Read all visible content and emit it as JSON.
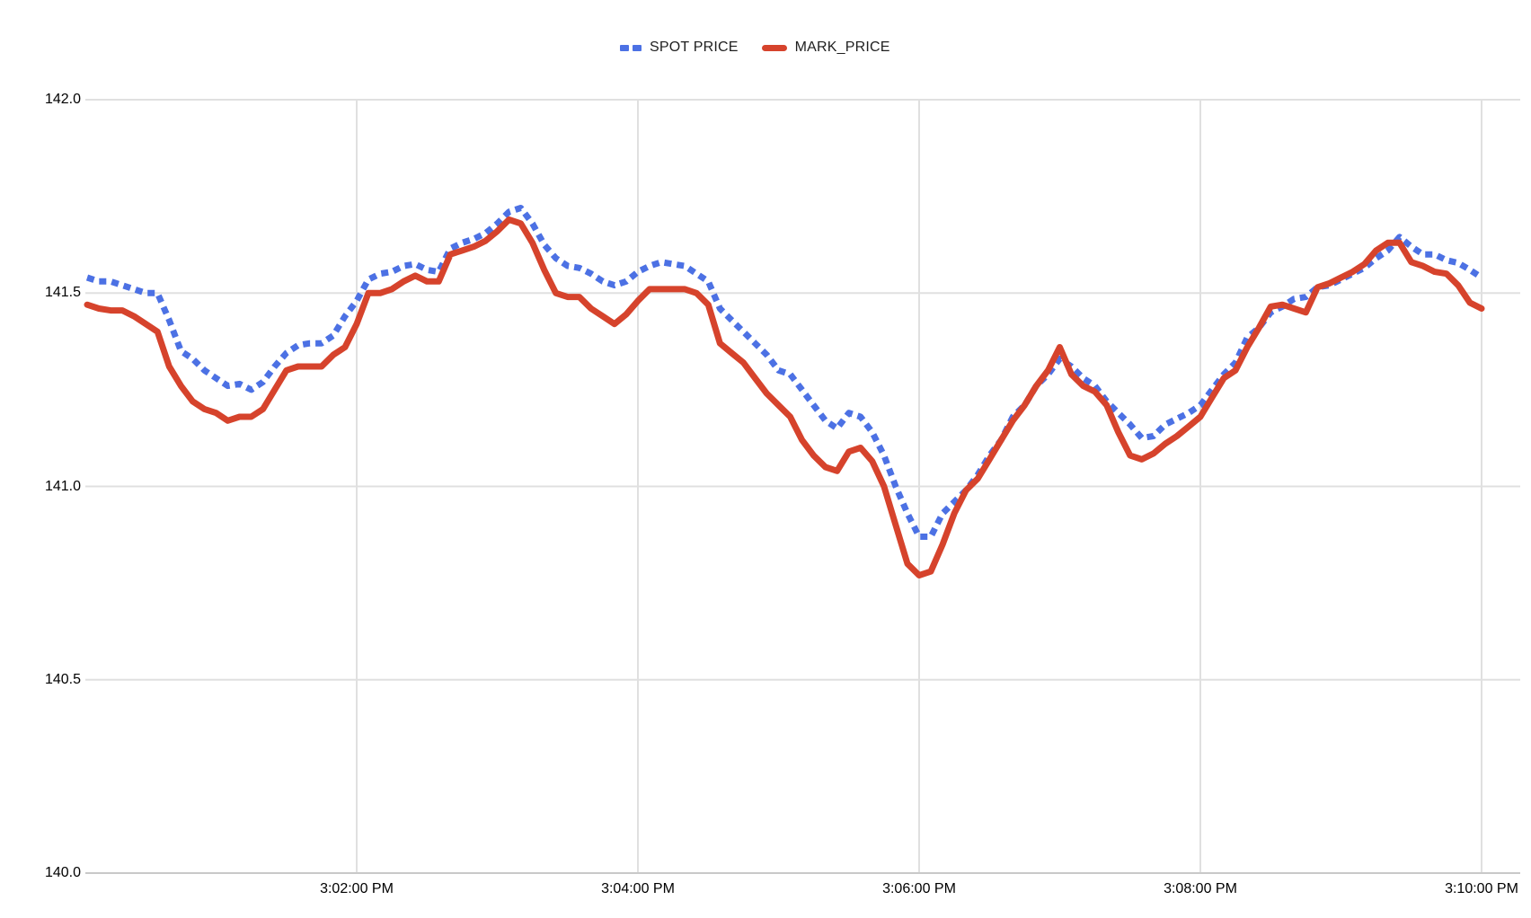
{
  "chart_data": {
    "type": "line",
    "title": "",
    "legend_position": "top",
    "grid_color": "#E0E0E0",
    "axis_line_color": "#C9C9C9",
    "y_axis": {
      "min": 140.0,
      "max": 142.0,
      "tick_labels": [
        "140.0",
        "140.5",
        "141.0",
        "141.5",
        "142.0"
      ],
      "tick_values": [
        140.0,
        140.5,
        141.0,
        141.5,
        142.0
      ]
    },
    "x_axis": {
      "start_seconds": 0,
      "end_seconds": 600,
      "sample_start_seconds": 5,
      "sample_interval_seconds": 5,
      "ticks": [
        {
          "seconds": 120,
          "label": "3:02:00 PM"
        },
        {
          "seconds": 240,
          "label": "3:04:00 PM"
        },
        {
          "seconds": 360,
          "label": "3:06:00 PM"
        },
        {
          "seconds": 480,
          "label": "3:08:00 PM"
        },
        {
          "seconds": 600,
          "label": "3:10:00 PM"
        }
      ]
    },
    "series": [
      {
        "name": "SPOT PRICE",
        "color": "#4C71E4",
        "line_style": "dotted",
        "values": [
          141.54,
          141.53,
          141.53,
          141.52,
          141.51,
          141.5,
          141.5,
          141.43,
          141.35,
          141.33,
          141.3,
          141.28,
          141.26,
          141.265,
          141.25,
          141.27,
          141.31,
          141.345,
          141.365,
          141.37,
          141.37,
          141.39,
          141.44,
          141.48,
          141.535,
          141.55,
          141.555,
          141.57,
          141.575,
          141.56,
          141.555,
          141.615,
          141.63,
          141.64,
          141.655,
          141.68,
          141.71,
          141.72,
          141.68,
          141.625,
          141.59,
          141.57,
          141.565,
          141.55,
          141.53,
          141.52,
          141.53,
          141.555,
          141.57,
          141.58,
          141.575,
          141.57,
          141.55,
          141.53,
          141.46,
          141.43,
          141.4,
          141.37,
          141.34,
          141.3,
          141.29,
          141.25,
          141.21,
          141.17,
          141.15,
          141.19,
          141.18,
          141.14,
          141.08,
          141.0,
          140.93,
          140.87,
          140.87,
          140.93,
          140.96,
          140.99,
          141.03,
          141.08,
          141.12,
          141.18,
          141.21,
          141.26,
          141.29,
          141.33,
          141.31,
          141.28,
          141.26,
          141.22,
          141.19,
          141.16,
          141.125,
          141.13,
          141.16,
          141.175,
          141.19,
          141.21,
          141.25,
          141.29,
          141.32,
          141.385,
          141.41,
          141.45,
          141.465,
          141.485,
          141.49,
          141.515,
          141.52,
          141.535,
          141.55,
          141.565,
          141.59,
          141.61,
          141.645,
          141.62,
          141.6,
          141.6,
          141.585,
          141.578,
          141.56,
          141.54
        ]
      },
      {
        "name": "MARK_PRICE",
        "color": "#D6432C",
        "line_style": "solid",
        "values": [
          141.47,
          141.46,
          141.455,
          141.455,
          141.44,
          141.42,
          141.4,
          141.31,
          141.26,
          141.22,
          141.2,
          141.19,
          141.17,
          141.18,
          141.18,
          141.2,
          141.25,
          141.3,
          141.31,
          141.31,
          141.31,
          141.34,
          141.36,
          141.42,
          141.5,
          141.5,
          141.51,
          141.53,
          141.545,
          141.53,
          141.53,
          141.6,
          141.61,
          141.62,
          141.635,
          141.66,
          141.69,
          141.68,
          141.63,
          141.56,
          141.5,
          141.49,
          141.49,
          141.46,
          141.44,
          141.42,
          141.445,
          141.48,
          141.51,
          141.51,
          141.51,
          141.51,
          141.5,
          141.47,
          141.37,
          141.345,
          141.32,
          141.28,
          141.24,
          141.21,
          141.18,
          141.12,
          141.08,
          141.05,
          141.04,
          141.09,
          141.1,
          141.065,
          141.0,
          140.9,
          140.8,
          140.77,
          140.78,
          140.85,
          140.93,
          140.99,
          141.02,
          141.07,
          141.12,
          141.17,
          141.21,
          141.26,
          141.3,
          141.36,
          141.29,
          141.26,
          141.245,
          141.21,
          141.14,
          141.08,
          141.07,
          141.085,
          141.11,
          141.13,
          141.155,
          141.18,
          141.23,
          141.28,
          141.3,
          141.36,
          141.41,
          141.465,
          141.47,
          141.46,
          141.45,
          141.515,
          141.525,
          141.54,
          141.555,
          141.575,
          141.61,
          141.63,
          141.63,
          141.58,
          141.57,
          141.555,
          141.55,
          141.52,
          141.475,
          141.46
        ]
      }
    ]
  }
}
